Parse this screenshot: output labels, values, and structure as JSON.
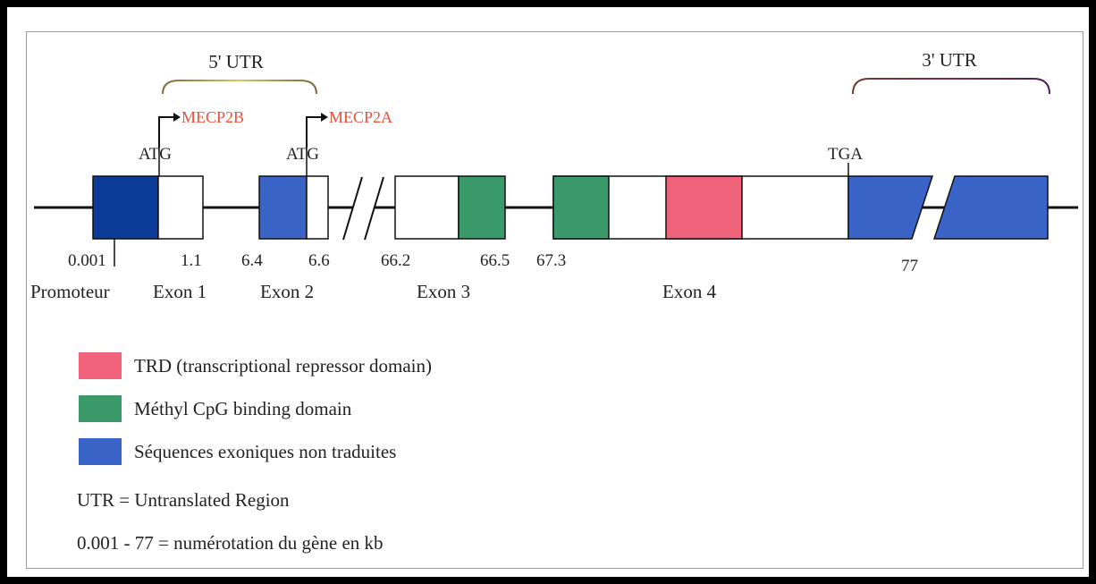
{
  "utr5": {
    "label": "5' UTR"
  },
  "utr3": {
    "label": "3' UTR"
  },
  "isoforms": [
    {
      "label": "MECP2B"
    },
    {
      "label": "MECP2A"
    }
  ],
  "codons": {
    "atg1": "ATG",
    "atg2": "ATG",
    "stop": "TGA"
  },
  "positions": [
    "0.001",
    "1.1",
    "6.4",
    "6.6",
    "66.2",
    "66.5",
    "67.3",
    "77"
  ],
  "regions": [
    "Promoteur",
    "Exon 1",
    "Exon 2",
    "Exon 3",
    "Exon 4"
  ],
  "legend": [
    {
      "label": "TRD (transcriptional repressor domain)",
      "color": "#f0637a"
    },
    {
      "label": "Méthyl CpG binding domain",
      "color": "#3a9a6a"
    },
    {
      "label": "Séquences exoniques non traduites",
      "color": "#3a64c8"
    }
  ],
  "notes": [
    "UTR = Untranslated Region",
    "0.001 - 77 = numérotation du gène en kb"
  ],
  "colors": {
    "promoter": "#0b3c9a",
    "utr_exon": "#3a64c8",
    "mbd": "#3a9a6a",
    "trd": "#f0637a",
    "bracket5_a": "#8a7040",
    "bracket5_b": "#cfc060",
    "bracket3_a": "#8a4040",
    "bracket3_b": "#4a2050"
  }
}
